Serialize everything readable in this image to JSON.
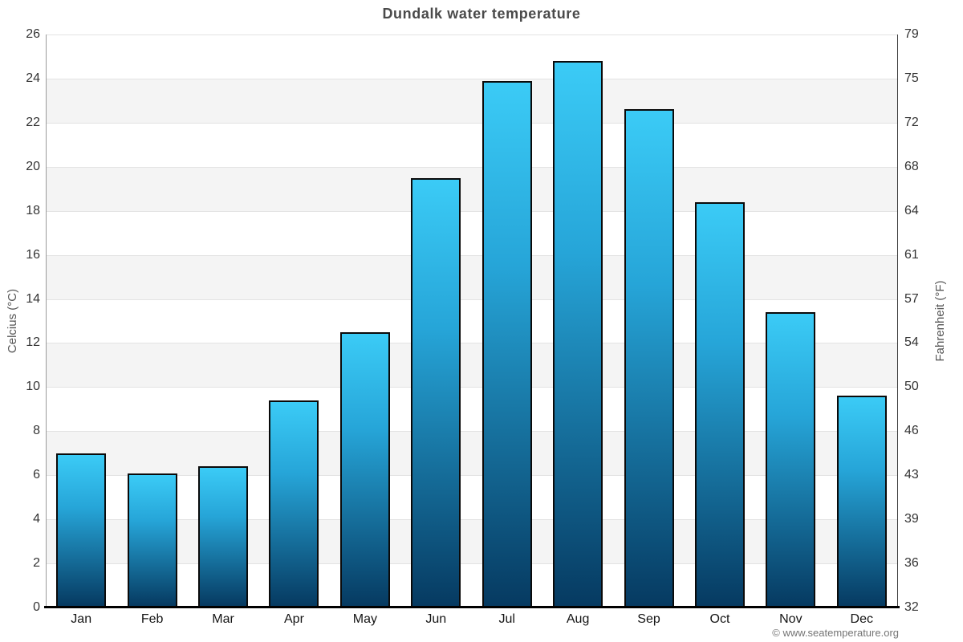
{
  "title": "Dundalk water temperature",
  "watermark": "© www.seatemperature.org",
  "axes": {
    "left_label": "Celcius (°C)",
    "right_label": "Fahrenheit (°F)",
    "left_ticks": [
      26,
      24,
      22,
      20,
      18,
      16,
      14,
      12,
      10,
      8,
      6,
      4,
      2,
      0
    ],
    "right_ticks": [
      79,
      75,
      72,
      68,
      64,
      61,
      57,
      54,
      50,
      46,
      43,
      39,
      36,
      32
    ]
  },
  "colors": {
    "title": "#4a4a4a",
    "band_gray": "#f4f4f4",
    "gridline": "#e3e3e3",
    "bar_top": "#3BCBF6",
    "bar_bottom": "#063A61",
    "bar_border": "#0a0a0a",
    "tick_text": "#333333",
    "watermark_text": "#747474"
  },
  "chart_data": {
    "type": "bar",
    "title": "Dundalk water temperature",
    "categories": [
      "Jan",
      "Feb",
      "Mar",
      "Apr",
      "May",
      "Jun",
      "Jul",
      "Aug",
      "Sep",
      "Oct",
      "Nov",
      "Dec"
    ],
    "values": [
      7.0,
      6.1,
      6.4,
      9.4,
      12.5,
      19.5,
      23.9,
      24.8,
      22.6,
      18.4,
      13.4,
      9.6
    ],
    "values_unit": "°C",
    "xlabel": "",
    "ylabel_left": "Celcius (°C)",
    "ylabel_right": "Fahrenheit (°F)",
    "ylim": [
      0,
      26
    ],
    "ylim_fahrenheit": [
      32,
      79
    ],
    "ytick_step": 2,
    "grid": "horizontal-bands-alternating",
    "legend": "none"
  }
}
